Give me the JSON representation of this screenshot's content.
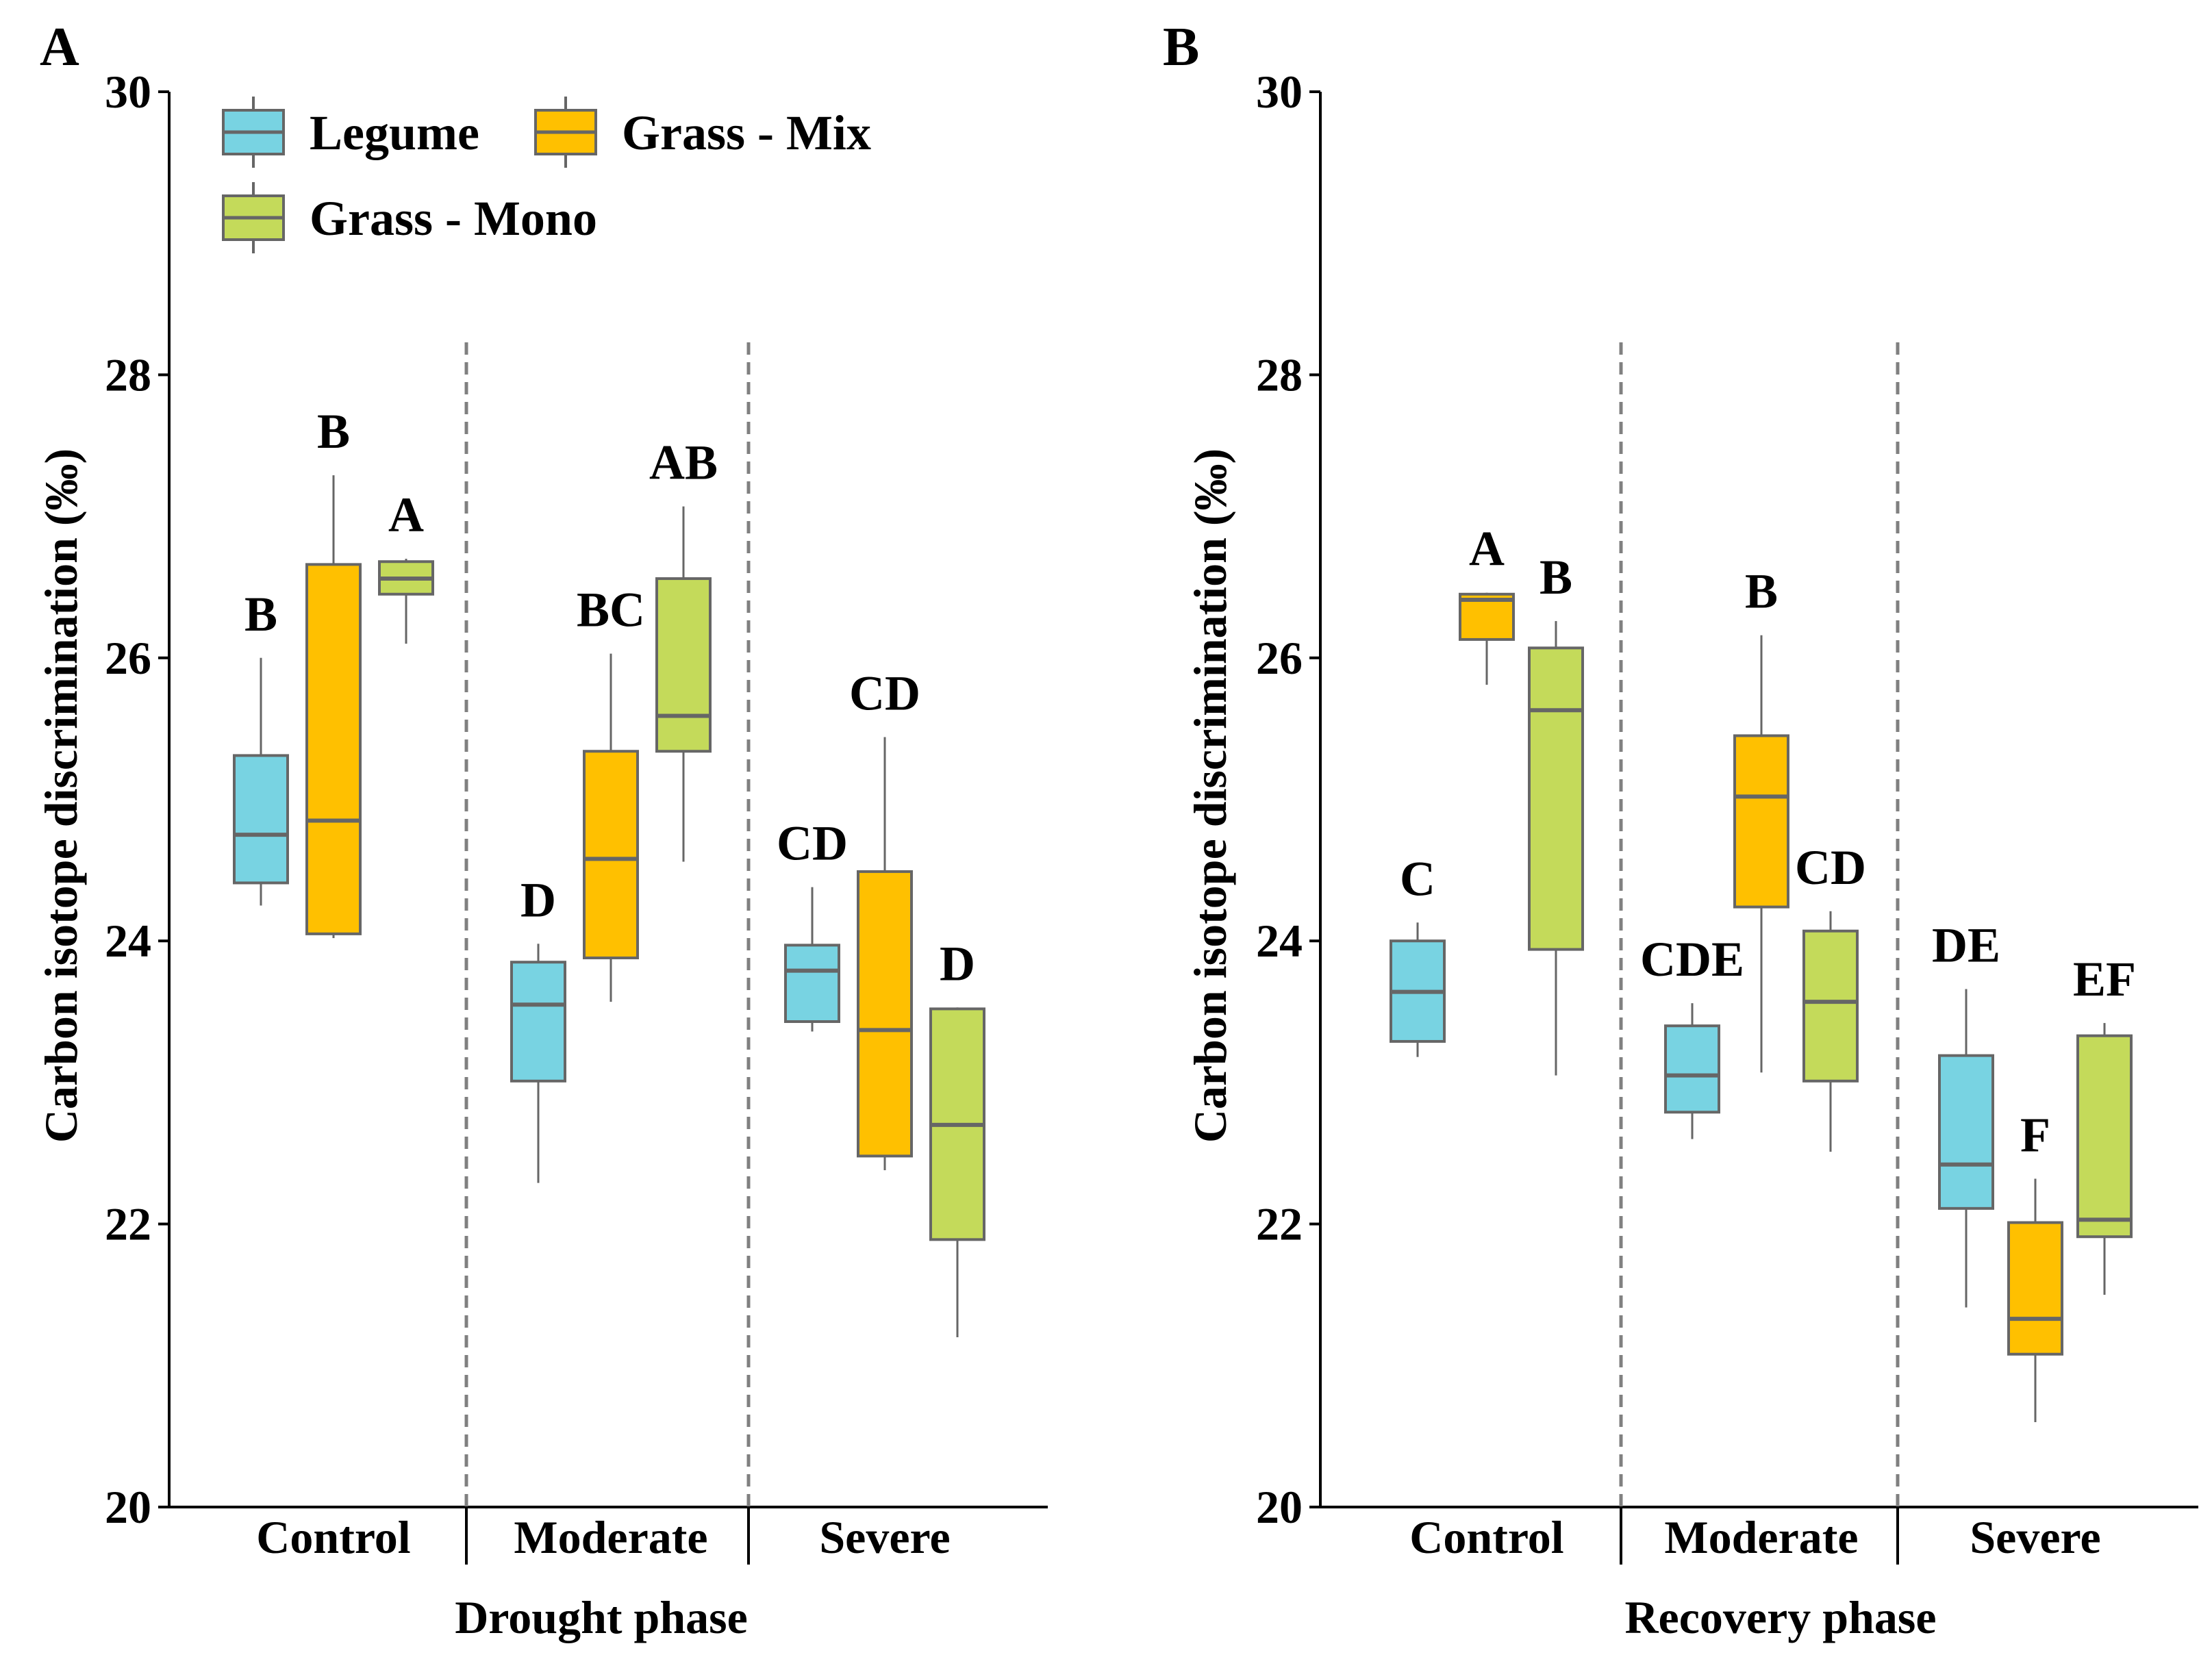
{
  "chart_data": [
    {
      "type": "boxplot",
      "panel_label": "A",
      "xlabel": "Drought phase",
      "ylabel": "Carbon isotope discrimination (‰)",
      "ylim": [
        20,
        30
      ],
      "yticks": [
        "20",
        "22",
        "24",
        "26",
        "28",
        "30"
      ],
      "categories": [
        "Control",
        "Moderate",
        "Severe"
      ],
      "legend": {
        "position": "top-left",
        "entries": [
          {
            "name": "Legume",
            "color": "#78D3E2"
          },
          {
            "name": "Grass - Mix",
            "color": "#FFC000"
          },
          {
            "name": "Grass - Mono",
            "color": "#C4DA5A"
          }
        ]
      },
      "series": [
        {
          "name": "Legume",
          "color": "#78D3E2",
          "boxes": [
            {
              "category": "Control",
              "min": 24.25,
              "q1": 24.41,
              "median": 24.75,
              "q3": 25.31,
              "max": 26.0,
              "label": "B"
            },
            {
              "category": "Moderate",
              "min": 22.29,
              "q1": 23.01,
              "median": 23.55,
              "q3": 23.85,
              "max": 23.98,
              "label": "D"
            },
            {
              "category": "Severe",
              "min": 23.36,
              "q1": 23.43,
              "median": 23.79,
              "q3": 23.97,
              "max": 24.38,
              "label": "CD"
            }
          ]
        },
        {
          "name": "Grass - Mix",
          "color": "#FFC000",
          "boxes": [
            {
              "category": "Control",
              "min": 24.02,
              "q1": 24.05,
              "median": 24.85,
              "q3": 26.66,
              "max": 27.29,
              "label": "B"
            },
            {
              "category": "Moderate",
              "min": 23.57,
              "q1": 23.88,
              "median": 24.58,
              "q3": 25.34,
              "max": 26.03,
              "label": "BC"
            },
            {
              "category": "Severe",
              "min": 22.38,
              "q1": 22.48,
              "median": 23.37,
              "q3": 24.49,
              "max": 25.44,
              "label": "CD"
            }
          ]
        },
        {
          "name": "Grass - Mono",
          "color": "#C4DA5A",
          "boxes": [
            {
              "category": "Control",
              "min": 26.1,
              "q1": 26.45,
              "median": 26.56,
              "q3": 26.68,
              "max": 26.7,
              "label": "A"
            },
            {
              "category": "Moderate",
              "min": 24.56,
              "q1": 25.34,
              "median": 25.59,
              "q3": 26.56,
              "max": 27.07,
              "label": "AB"
            },
            {
              "category": "Severe",
              "min": 21.2,
              "q1": 21.89,
              "median": 22.7,
              "q3": 23.52,
              "max": 23.53,
              "label": "D"
            }
          ]
        }
      ]
    },
    {
      "type": "boxplot",
      "panel_label": "B",
      "xlabel": "Recovery phase",
      "ylabel": "Carbon isotope discrimination (‰)",
      "ylim": [
        20,
        30
      ],
      "yticks": [
        "20",
        "22",
        "24",
        "26",
        "28",
        "30"
      ],
      "categories": [
        "Control",
        "Moderate",
        "Severe"
      ],
      "series": [
        {
          "name": "Legume",
          "color": "#78D3E2",
          "boxes": [
            {
              "category": "Control",
              "min": 23.18,
              "q1": 23.29,
              "median": 23.64,
              "q3": 24.0,
              "max": 24.13,
              "label": "C"
            },
            {
              "category": "Moderate",
              "min": 22.6,
              "q1": 22.79,
              "median": 23.05,
              "q3": 23.4,
              "max": 23.56,
              "label": "CDE"
            },
            {
              "category": "Severe",
              "min": 21.41,
              "q1": 22.11,
              "median": 22.42,
              "q3": 23.19,
              "max": 23.66,
              "label": "DE"
            }
          ]
        },
        {
          "name": "Grass - Mix",
          "color": "#FFC000",
          "boxes": [
            {
              "category": "Control",
              "min": 25.81,
              "q1": 26.13,
              "median": 26.41,
              "q3": 26.45,
              "max": 26.46,
              "label": "A"
            },
            {
              "category": "Moderate",
              "min": 23.07,
              "q1": 24.24,
              "median": 25.02,
              "q3": 25.45,
              "max": 26.16,
              "label": "B"
            },
            {
              "category": "Severe",
              "min": 20.6,
              "q1": 21.08,
              "median": 21.33,
              "q3": 22.01,
              "max": 22.32,
              "label": "F"
            }
          ]
        },
        {
          "name": "Grass - Mono",
          "color": "#C4DA5A",
          "boxes": [
            {
              "category": "Control",
              "min": 23.05,
              "q1": 23.94,
              "median": 25.63,
              "q3": 26.07,
              "max": 26.26,
              "label": "B"
            },
            {
              "category": "Moderate",
              "min": 22.51,
              "q1": 23.01,
              "median": 23.57,
              "q3": 24.07,
              "max": 24.21,
              "label": "CD"
            },
            {
              "category": "Severe",
              "min": 21.5,
              "q1": 21.91,
              "median": 22.03,
              "q3": 23.33,
              "max": 23.42,
              "label": "EF"
            }
          ]
        }
      ]
    }
  ]
}
